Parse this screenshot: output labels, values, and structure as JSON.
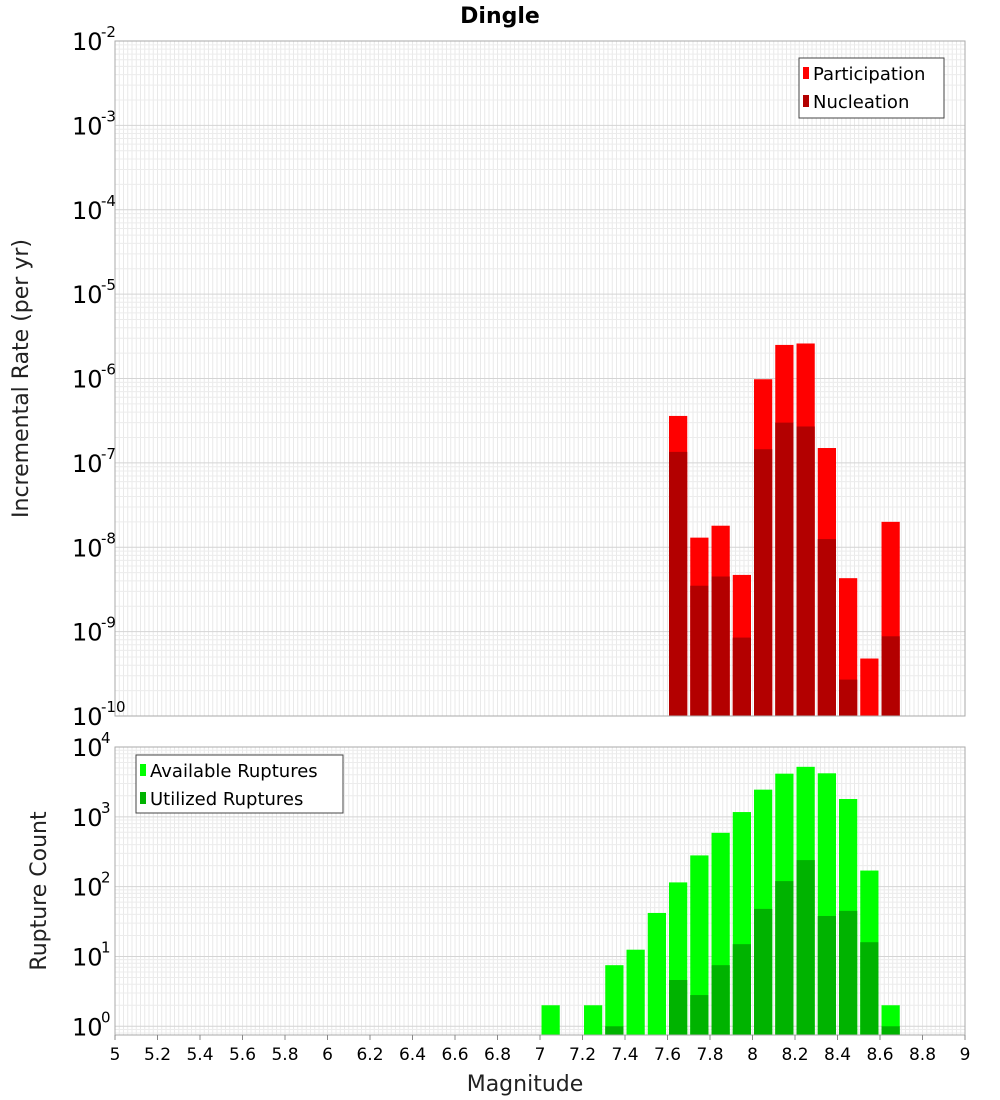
{
  "chart_data": [
    {
      "type": "bar",
      "title": "Dingle",
      "xlabel": "",
      "ylabel": "Incremental Rate (per yr)",
      "yscale": "log",
      "ylim": [
        1e-10,
        0.01
      ],
      "xlim": [
        5,
        9
      ],
      "grid": true,
      "y_ticks": [
        {
          "base": "10",
          "exp": "-10",
          "value": 1e-10
        },
        {
          "base": "10",
          "exp": "-9",
          "value": 1e-09
        },
        {
          "base": "10",
          "exp": "-8",
          "value": 1e-08
        },
        {
          "base": "10",
          "exp": "-7",
          "value": 1e-07
        },
        {
          "base": "10",
          "exp": "-6",
          "value": 1e-06
        },
        {
          "base": "10",
          "exp": "-5",
          "value": 1e-05
        },
        {
          "base": "10",
          "exp": "-4",
          "value": 0.0001
        },
        {
          "base": "10",
          "exp": "-3",
          "value": 0.001
        },
        {
          "base": "10",
          "exp": "-2",
          "value": 0.01
        }
      ],
      "legend_position": "top-right",
      "bin_width": 0.1,
      "x": [
        7.65,
        7.75,
        7.85,
        7.95,
        8.05,
        8.15,
        8.25,
        8.35,
        8.45,
        8.55,
        8.65
      ],
      "series": [
        {
          "name": "Participation",
          "color": "#ff0000",
          "values": [
            3.6e-07,
            1.3e-08,
            1.8e-08,
            4.7e-09,
            9.8e-07,
            2.5e-06,
            2.6e-06,
            1.5e-07,
            4.3e-09,
            4.8e-10,
            2e-08
          ]
        },
        {
          "name": "Nucleation",
          "color": "#b30000",
          "values": [
            1.35e-07,
            3.5e-09,
            4.5e-09,
            8.5e-10,
            1.45e-07,
            3e-07,
            2.7e-07,
            1.25e-08,
            2.7e-10,
            null,
            8.8e-10
          ]
        }
      ]
    },
    {
      "type": "bar",
      "title": "",
      "xlabel": "Magnitude",
      "ylabel": "Rupture Count",
      "yscale": "log",
      "ylim": [
        0.75,
        10000
      ],
      "xlim": [
        5,
        9
      ],
      "grid": true,
      "y_ticks": [
        {
          "base": "10",
          "exp": "0",
          "value": 1
        },
        {
          "base": "10",
          "exp": "1",
          "value": 10
        },
        {
          "base": "10",
          "exp": "2",
          "value": 100
        },
        {
          "base": "10",
          "exp": "3",
          "value": 1000
        },
        {
          "base": "10",
          "exp": "4",
          "value": 10000
        }
      ],
      "x_ticks": [
        "5",
        "5.2",
        "5.4",
        "5.6",
        "5.8",
        "6",
        "6.2",
        "6.4",
        "6.6",
        "6.8",
        "7",
        "7.2",
        "7.4",
        "7.6",
        "7.8",
        "8",
        "8.2",
        "8.4",
        "8.6",
        "8.8",
        "9"
      ],
      "legend_position": "top-left",
      "bin_width": 0.1,
      "x": [
        7.05,
        7.15,
        7.25,
        7.35,
        7.45,
        7.55,
        7.65,
        7.75,
        7.85,
        7.95,
        8.05,
        8.15,
        8.25,
        8.35,
        8.45,
        8.55,
        8.65
      ],
      "series": [
        {
          "name": "Available Ruptures",
          "color": "#00ff00",
          "values": [
            2,
            null,
            2,
            7.5,
            12.5,
            42,
            115,
            280,
            590,
            1170,
            2450,
            4150,
            5200,
            4200,
            1800,
            170,
            2
          ]
        },
        {
          "name": "Utilized Ruptures",
          "color": "#00b300",
          "values": [
            null,
            null,
            null,
            1,
            null,
            null,
            4.6,
            2.8,
            7.5,
            15,
            48,
            120,
            240,
            38,
            45,
            16,
            1
          ]
        }
      ]
    }
  ]
}
